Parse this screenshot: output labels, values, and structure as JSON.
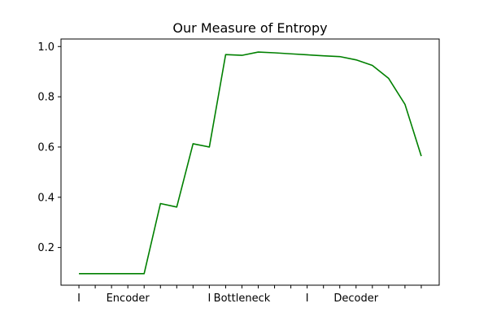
{
  "chart_data": {
    "type": "line",
    "title": "Our Measure of Entropy",
    "xlabel": "",
    "ylabel": "",
    "x": [
      0,
      1,
      2,
      3,
      4,
      5,
      6,
      7,
      8,
      9,
      10,
      11,
      12,
      13,
      14,
      15,
      16,
      17,
      18,
      19,
      20,
      21
    ],
    "xlim": [
      -1.1,
      22.1
    ],
    "ylim": [
      0.05,
      1.03
    ],
    "x_ticks": [
      0,
      1,
      2,
      3,
      4,
      5,
      6,
      7,
      8,
      9,
      10,
      11,
      12,
      13,
      14,
      15,
      16,
      17,
      18,
      19,
      20,
      21
    ],
    "x_tick_labels": [
      "I",
      "",
      "",
      "Encoder",
      "",
      "",
      "",
      "",
      "I",
      "",
      "Bottleneck",
      "",
      "",
      "",
      "I",
      "",
      "",
      "Decoder",
      "",
      "",
      "",
      ""
    ],
    "y_ticks": [
      0.2,
      0.4,
      0.6,
      0.8,
      1.0
    ],
    "y_tick_labels": [
      "0.2",
      "0.4",
      "0.6",
      "0.8",
      "1.0"
    ],
    "grid": false,
    "series": [
      {
        "color": "#008000",
        "values": [
          0.096,
          0.096,
          0.096,
          0.096,
          0.096,
          0.375,
          0.361,
          0.613,
          0.6,
          0.968,
          0.965,
          0.978,
          0.975,
          0.971,
          0.967,
          0.963,
          0.96,
          0.947,
          0.925,
          0.873,
          0.77,
          0.564
        ]
      }
    ]
  }
}
